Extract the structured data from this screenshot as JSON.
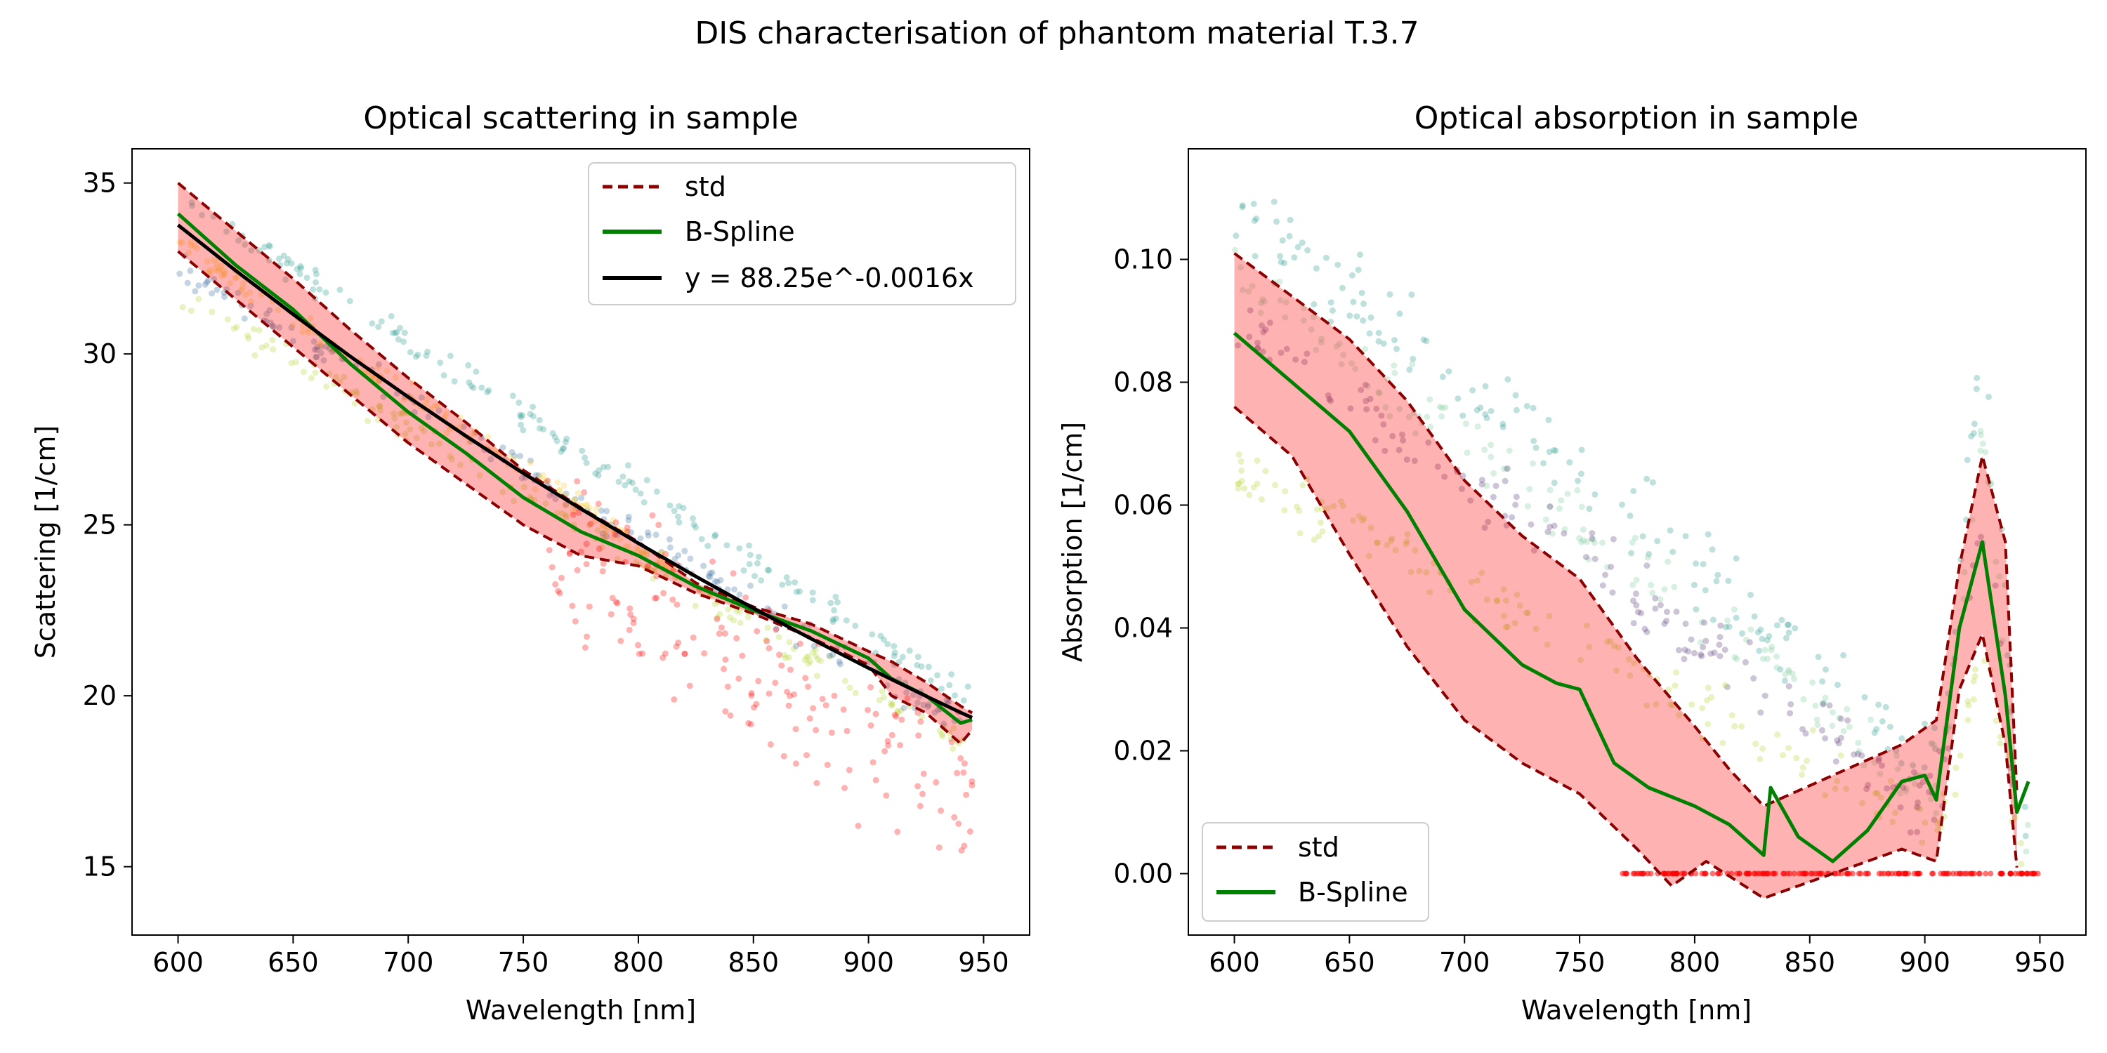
{
  "figure": {
    "suptitle": "DIS characterisation of phantom material T.3.7"
  },
  "colors": {
    "std": "#8b0000",
    "band_fill": "#ff0000",
    "spline": "#008000",
    "fit": "#000000",
    "scatter_red": "#ff0000",
    "scatter_teal": "#2a9d8f",
    "scatter_green": "#7dcea0",
    "scatter_lime": "#b5d433",
    "scatter_blue": "#3b6fa0",
    "scatter_purple": "#5a3a7a",
    "scatter_yellow": "#f4d03f"
  },
  "chart_data": [
    {
      "type": "line",
      "title": "Optical scattering in sample",
      "xlabel": "Wavelength [nm]",
      "ylabel": "Scattering [1/cm]",
      "xlim": [
        580,
        970
      ],
      "ylim": [
        13,
        36
      ],
      "xticks": [
        600,
        650,
        700,
        750,
        800,
        850,
        900,
        950
      ],
      "yticks": [
        15,
        20,
        25,
        30,
        35
      ],
      "legend_position": "top-right",
      "legend": [
        "std",
        "B-Spline",
        "y = 88.25e^-0.0016x"
      ],
      "x": [
        600,
        625,
        650,
        675,
        700,
        725,
        750,
        775,
        800,
        825,
        850,
        875,
        900,
        910,
        925,
        940,
        945
      ],
      "series": [
        {
          "name": "std",
          "style": "dashed",
          "role": "upper",
          "values": [
            35.0,
            33.6,
            32.2,
            30.7,
            29.3,
            28.0,
            26.6,
            25.5,
            24.5,
            23.3,
            22.6,
            22.1,
            21.3,
            21.0,
            20.4,
            19.7,
            19.5
          ]
        },
        {
          "name": "std",
          "style": "dashed",
          "role": "lower",
          "values": [
            33.0,
            31.6,
            30.2,
            28.8,
            27.4,
            26.2,
            25.0,
            24.1,
            23.8,
            23.0,
            22.4,
            21.7,
            20.9,
            20.0,
            19.5,
            18.6,
            19.0
          ]
        },
        {
          "name": "B-Spline",
          "values": [
            34.1,
            32.6,
            31.3,
            29.7,
            28.3,
            27.1,
            25.8,
            24.8,
            24.1,
            23.2,
            22.5,
            21.9,
            21.1,
            20.5,
            20.0,
            19.2,
            19.3
          ]
        },
        {
          "name": "y = 88.25e^-0.0016x",
          "values": [
            33.77,
            32.44,
            31.16,
            29.92,
            28.74,
            27.6,
            26.51,
            25.47,
            24.46,
            23.49,
            22.56,
            21.67,
            20.81,
            20.48,
            19.99,
            19.51,
            19.36
          ]
        }
      ],
      "scatter_groups": [
        {
          "color_key": "scatter_lime",
          "x_range": [
            600,
            945
          ],
          "start": 31.7,
          "end": 18.4,
          "noise": 0.35
        },
        {
          "color_key": "scatter_blue",
          "x_range": [
            600,
            945
          ],
          "start": 32.6,
          "end": 19.0,
          "noise": 0.4
        },
        {
          "color_key": "scatter_teal",
          "x_range": [
            600,
            945
          ],
          "start": 34.6,
          "end": 19.9,
          "noise": 0.35
        },
        {
          "color_key": "scatter_yellow",
          "x_range": [
            600,
            820
          ],
          "start": 33.2,
          "end": 23.5,
          "noise": 0.3
        },
        {
          "color_key": "scatter_red",
          "x_range": [
            760,
            950
          ],
          "start": 24.5,
          "end": 16.5,
          "noise": 2.2
        }
      ]
    },
    {
      "type": "line",
      "title": "Optical absorption in sample",
      "xlabel": "Wavelength [nm]",
      "ylabel": "Absorption [1/cm]",
      "xlim": [
        580,
        970
      ],
      "ylim": [
        -0.01,
        0.118
      ],
      "xticks": [
        600,
        650,
        700,
        750,
        800,
        850,
        900,
        950
      ],
      "yticks": [
        0.0,
        0.02,
        0.04,
        0.06,
        0.08,
        0.1
      ],
      "ytick_labels": [
        "0.00",
        "0.02",
        "0.04",
        "0.06",
        "0.08",
        "0.10"
      ],
      "legend_position": "bottom-left",
      "legend": [
        "std",
        "B-Spline"
      ],
      "series": [
        {
          "name": "std",
          "style": "dashed",
          "role": "upper",
          "x": [
            600,
            625,
            650,
            675,
            700,
            725,
            750,
            775,
            800,
            815,
            830,
            890,
            905,
            915,
            925,
            935,
            940
          ],
          "values": [
            0.101,
            0.094,
            0.087,
            0.077,
            0.064,
            0.055,
            0.048,
            0.035,
            0.024,
            0.017,
            0.011,
            0.021,
            0.025,
            0.05,
            0.068,
            0.054,
            0.013
          ]
        },
        {
          "name": "std",
          "style": "dashed",
          "role": "lower",
          "x": [
            600,
            625,
            650,
            675,
            700,
            725,
            750,
            775,
            790,
            805,
            830,
            890,
            905,
            915,
            925,
            935,
            940
          ],
          "values": [
            0.076,
            0.068,
            0.052,
            0.037,
            0.025,
            0.018,
            0.013,
            0.004,
            -0.002,
            0.002,
            -0.004,
            0.004,
            0.002,
            0.03,
            0.039,
            0.021,
            0.001
          ]
        },
        {
          "name": "B-Spline",
          "x": [
            600,
            625,
            650,
            675,
            700,
            725,
            740,
            750,
            765,
            780,
            800,
            815,
            830,
            833,
            845,
            860,
            875,
            890,
            900,
            905,
            915,
            925,
            935,
            940,
            945
          ],
          "values": [
            0.088,
            0.08,
            0.072,
            0.059,
            0.043,
            0.034,
            0.031,
            0.03,
            0.018,
            0.014,
            0.011,
            0.008,
            0.003,
            0.014,
            0.006,
            0.002,
            0.007,
            0.015,
            0.016,
            0.012,
            0.04,
            0.054,
            0.029,
            0.01,
            0.015
          ]
        }
      ],
      "scatter_groups": [
        {
          "color_key": "scatter_teal",
          "x_range": [
            600,
            945
          ],
          "start": 0.11,
          "end": 0.005,
          "noise": 0.006,
          "peak": 0.085
        },
        {
          "color_key": "scatter_green",
          "x_range": [
            600,
            945
          ],
          "start": 0.098,
          "end": 0.003,
          "noise": 0.005,
          "peak": 0.07
        },
        {
          "color_key": "scatter_purple",
          "x_range": [
            600,
            945
          ],
          "start": 0.09,
          "end": 0.001,
          "noise": 0.005,
          "peak": 0.055
        },
        {
          "color_key": "scatter_lime",
          "x_range": [
            600,
            945
          ],
          "start": 0.066,
          "end": 0.0,
          "noise": 0.004,
          "peak": 0.035
        },
        {
          "color_key": "scatter_red",
          "x_range": [
            765,
            950
          ],
          "start": 0.0,
          "end": 0.0,
          "noise": 0.0,
          "flat": true
        }
      ]
    }
  ]
}
